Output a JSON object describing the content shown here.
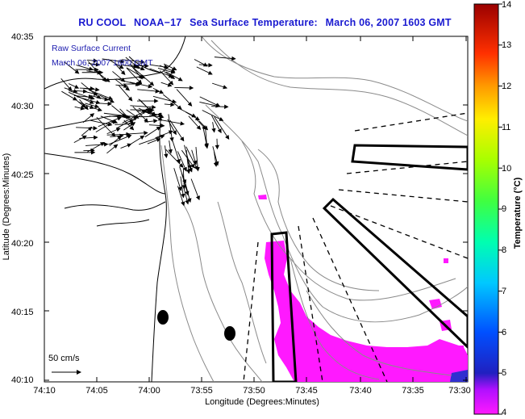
{
  "title": {
    "prefix": "RU COOL",
    "satellite": "NOAA−17",
    "product": "Sea Surface Temperature:",
    "datetime": "March 06, 2007 1603 GMT"
  },
  "legend": {
    "line1": "Raw Surface Current",
    "line2": "March 06, 2007 1600 GMT"
  },
  "scale_label": "50 cm/s",
  "axes": {
    "xlabel": "Longitude (Degrees:Minutes)",
    "ylabel": "Latitude (Degrees:Minutes)",
    "x_ticks": [
      "74:10",
      "74:05",
      "74:00",
      "73:55",
      "73:50",
      "73:45",
      "73:40",
      "73:35",
      "73:30"
    ],
    "y_ticks": [
      "40:35",
      "40:30",
      "40:25",
      "40:20",
      "40:15",
      "40:10"
    ]
  },
  "colorbar": {
    "label": "Temperature (°C)",
    "min": 4,
    "max": 14,
    "ticks": [
      "4",
      "5",
      "6",
      "7",
      "8",
      "9",
      "10",
      "11",
      "12",
      "13",
      "14"
    ]
  },
  "colors": {
    "title": "#1a1ad0",
    "legend": "#2020b0",
    "sst_low": "#ff19ff"
  }
}
